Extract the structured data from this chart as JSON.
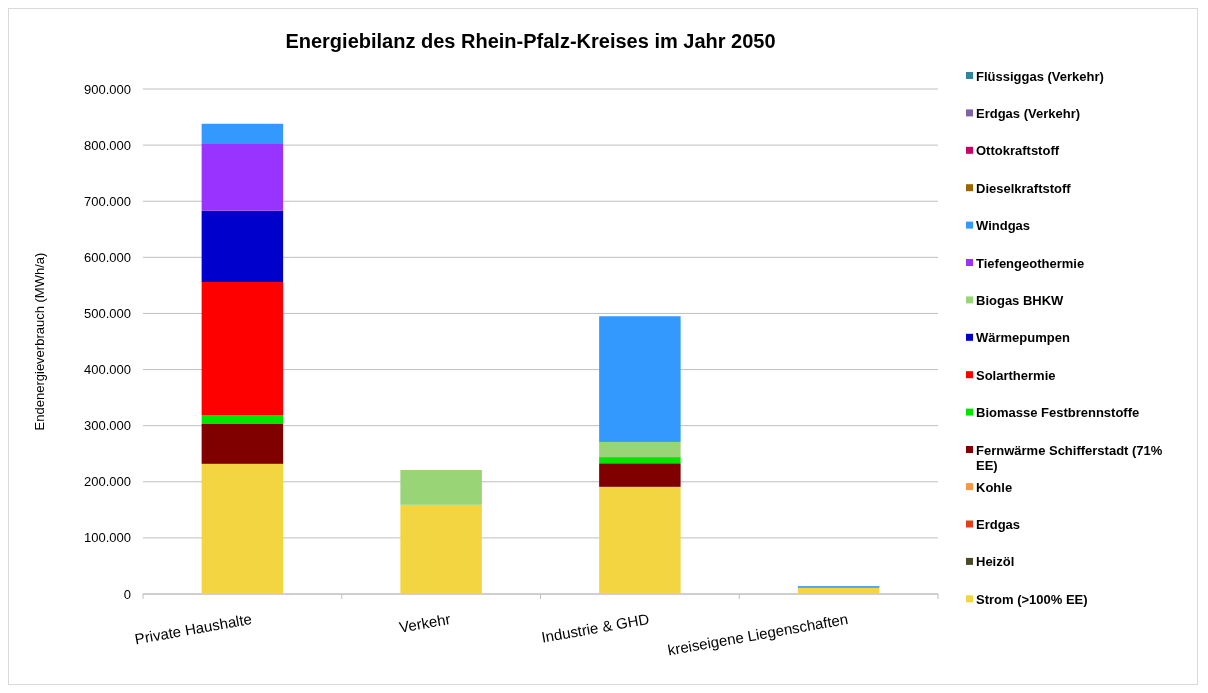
{
  "chart_data": {
    "type": "bar",
    "title": "Energiebilanz des Rhein-Pfalz-Kreises im Jahr 2050",
    "ylabel": "Endenergieverbrauch (MWh/a)",
    "categories": [
      "Private Haushalte",
      "Verkehr",
      "Industrie & GHD",
      "kreiseigene Liegenschaften"
    ],
    "stacked": true,
    "legend": "right",
    "grid": "y",
    "ylim": [
      0,
      900000
    ],
    "yticks": [
      {
        "value": 0,
        "label": "0"
      },
      {
        "value": 100000,
        "label": "100.000"
      },
      {
        "value": 200000,
        "label": "200.000"
      },
      {
        "value": 300000,
        "label": "300.000"
      },
      {
        "value": 400000,
        "label": "400.000"
      },
      {
        "value": 500000,
        "label": "500.000"
      },
      {
        "value": 600000,
        "label": "600.000"
      },
      {
        "value": 700000,
        "label": "700.000"
      },
      {
        "value": 800000,
        "label": "800.000"
      },
      {
        "value": 900000,
        "label": "900.000"
      }
    ],
    "series": [
      {
        "name": "Strom (>100% EE)",
        "color": "#f2d541",
        "values": [
          232000,
          159000,
          191000,
          11000
        ]
      },
      {
        "name": "Heizöl",
        "color": "#4a4a2a",
        "values": [
          0,
          0,
          0,
          0
        ]
      },
      {
        "name": "Erdgas",
        "color": "#e0401a",
        "values": [
          0,
          0,
          0,
          0
        ]
      },
      {
        "name": "Kohle",
        "color": "#f79646",
        "values": [
          0,
          0,
          0,
          0
        ]
      },
      {
        "name": "Fernwärme Schifferstadt (71% EE)",
        "color": "#800000",
        "values": [
          71000,
          0,
          42000,
          0
        ]
      },
      {
        "name": "Biomasse Festbrennstoffe",
        "color": "#00e600",
        "values": [
          16000,
          0,
          11000,
          0
        ]
      },
      {
        "name": "Solarthermie",
        "color": "#ff0000",
        "values": [
          237000,
          0,
          0,
          0
        ]
      },
      {
        "name": "Wärmepumpen",
        "color": "#0000cc",
        "values": [
          127000,
          0,
          0,
          0
        ]
      },
      {
        "name": "Biogas BHKW",
        "color": "#99d477",
        "values": [
          0,
          62000,
          27000,
          0
        ]
      },
      {
        "name": "Tiefengeothermie",
        "color": "#9933ff",
        "values": [
          119000,
          0,
          0,
          0
        ]
      },
      {
        "name": "Windgas",
        "color": "#3399ff",
        "values": [
          36000,
          0,
          224000,
          3000
        ]
      },
      {
        "name": "Dieselkraftstoff",
        "color": "#996600",
        "values": [
          0,
          0,
          0,
          0
        ]
      },
      {
        "name": "Ottokraftstoff",
        "color": "#cc0066",
        "values": [
          0,
          0,
          0,
          0
        ]
      },
      {
        "name": "Erdgas (Verkehr)",
        "color": "#8064a2",
        "values": [
          0,
          0,
          0,
          0
        ]
      },
      {
        "name": "Flüssiggas (Verkehr)",
        "color": "#31859c",
        "values": [
          0,
          0,
          0,
          0
        ]
      }
    ]
  }
}
